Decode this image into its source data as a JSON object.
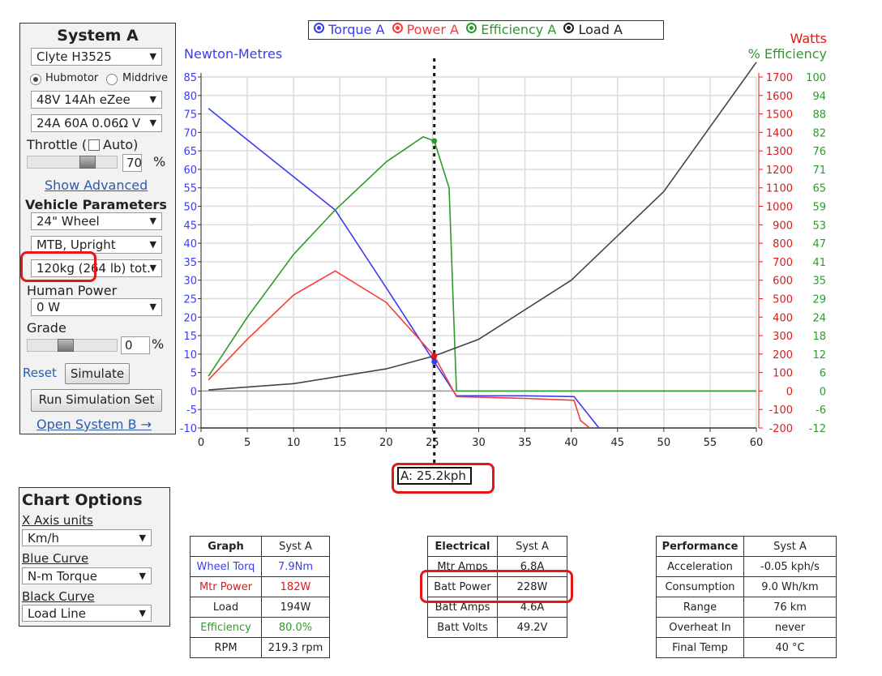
{
  "systemA": {
    "title": "System A",
    "motor": "Clyte H3525",
    "radio": {
      "hub": "Hubmotor",
      "mid": "Middrive",
      "selected": "hub"
    },
    "battery": "48V 14Ah eZee",
    "controller": "24A 60A 0.06Ω V",
    "throttle_label": "Throttle (",
    "auto_label": "Auto)",
    "throttle_value": "70",
    "percent": "%",
    "throttle_fraction": 0.7,
    "show_advanced": "Show Advanced",
    "vehicle_params": "Vehicle Parameters",
    "wheel": "24\"  Wheel",
    "type": "MTB, Upright",
    "weight": "120kg (264 lb) tot.",
    "human_power_label": "Human Power",
    "human_power": "0 W",
    "grade_label": "Grade",
    "grade_value": "0",
    "grade_fraction": 0.4,
    "reset": "Reset",
    "simulate": "Simulate",
    "run_set": "Run Simulation Set",
    "open_b": "Open System B →"
  },
  "legend": {
    "torque": "Torque A",
    "power": "Power A",
    "efficiency": "Efficiency A",
    "load": "Load A"
  },
  "colors": {
    "torque": "#3b3bf5",
    "power": "#f53b3b",
    "efficiency": "#2e9a2e",
    "load": "#444444"
  },
  "cursor_label": "A: 25.2kph",
  "chart_data": {
    "type": "line",
    "left_axis_label": "Newton-Metres",
    "right_axis_label_1": "Watts",
    "right_axis_label_2": "% Efficiency",
    "xlim": [
      0,
      60
    ],
    "x_ticks": [
      0,
      5,
      10,
      15,
      20,
      25,
      30,
      35,
      40,
      45,
      50,
      55,
      60
    ],
    "ylim_nm": [
      -10,
      85
    ],
    "y_ticks_nm": [
      85,
      80,
      75,
      70,
      65,
      60,
      55,
      50,
      45,
      40,
      35,
      30,
      25,
      20,
      15,
      10,
      5,
      0,
      -5,
      -10
    ],
    "y_ticks_watts": [
      1700,
      1600,
      1500,
      1400,
      1300,
      1200,
      1100,
      1000,
      900,
      800,
      700,
      600,
      500,
      400,
      300,
      200,
      100,
      0,
      -100,
      -200
    ],
    "y_ticks_eff": [
      100,
      94,
      88,
      82,
      76,
      71,
      65,
      59,
      53,
      47,
      41,
      35,
      29,
      24,
      18,
      12,
      6,
      0,
      -6,
      -12
    ],
    "cursor_x": 25.2,
    "series": [
      {
        "name": "Torque A",
        "x": [
          0.8,
          5,
          10,
          14.5,
          20,
          25.2,
          27.6,
          35,
          40.3,
          43
        ],
        "y": [
          76.5,
          68,
          58,
          49,
          28,
          7.9,
          -1.3,
          -1.3,
          -1.5,
          -10
        ]
      },
      {
        "name": "Power A",
        "x": [
          0.8,
          5,
          10,
          14.5,
          20,
          25.2,
          27.6,
          35,
          40.3,
          41,
          42
        ],
        "y": [
          3,
          14,
          26,
          32.5,
          24,
          9.5,
          -1.5,
          -2,
          -2.5,
          -8,
          -10
        ]
      },
      {
        "name": "Efficiency A",
        "x": [
          0.8,
          5,
          10,
          14.5,
          20,
          24,
          25.2,
          26.8,
          27.3,
          27.6,
          60
        ],
        "y": [
          4,
          20,
          37,
          49,
          62,
          68.8,
          67.7,
          55,
          20,
          0,
          0
        ]
      },
      {
        "name": "Load A",
        "x": [
          0.8,
          10,
          20,
          25.2,
          30,
          40,
          50,
          60
        ],
        "y": [
          0.3,
          2,
          6,
          9.5,
          14,
          30,
          54,
          89
        ]
      }
    ]
  },
  "chart_options": {
    "title": "Chart Options",
    "x_units_label": "X Axis units",
    "x_units": "Km/h",
    "blue_label": "Blue Curve",
    "blue": "N-m Torque",
    "black_label": "Black Curve",
    "black": "Load Line"
  },
  "graph_table": {
    "header": [
      "Graph",
      "Syst A"
    ],
    "rows": [
      [
        "Wheel Torq",
        "7.9Nm"
      ],
      [
        "Mtr Power",
        "182W"
      ],
      [
        "Load",
        "194W"
      ],
      [
        "Efficiency",
        "80.0%"
      ],
      [
        "RPM",
        "219.3 rpm"
      ]
    ]
  },
  "electrical_table": {
    "header": [
      "Electrical",
      "Syst A"
    ],
    "rows": [
      [
        "Mtr Amps",
        "6.8A"
      ],
      [
        "Batt Power",
        "228W"
      ],
      [
        "Batt Amps",
        "4.6A"
      ],
      [
        "Batt Volts",
        "49.2V"
      ]
    ]
  },
  "performance_table": {
    "header": [
      "Performance",
      "Syst A"
    ],
    "rows": [
      [
        "Acceleration",
        "-0.05 kph/s"
      ],
      [
        "Consumption",
        "9.0 Wh/km"
      ],
      [
        "Range",
        "76 km"
      ],
      [
        "Overheat In",
        "never"
      ],
      [
        "Final Temp",
        "40 °C"
      ]
    ]
  }
}
